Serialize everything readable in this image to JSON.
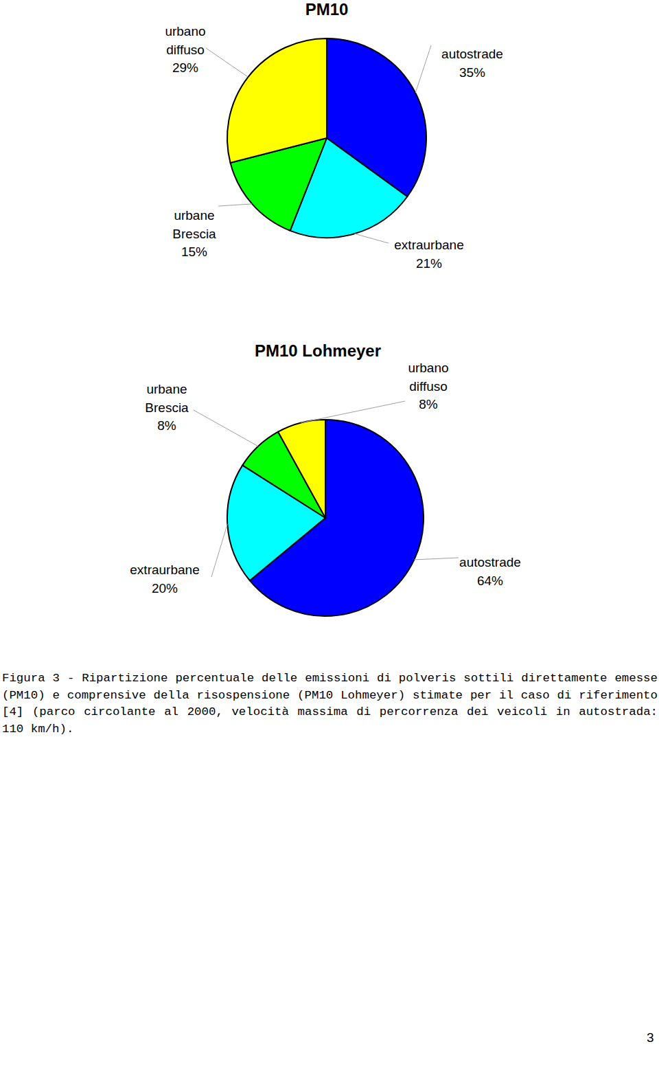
{
  "chart_data": [
    {
      "type": "pie",
      "title": "PM10",
      "categories": [
        "autostrade",
        "extraurbane",
        "urbane Brescia",
        "urbano diffuso"
      ],
      "values": [
        35,
        21,
        15,
        29
      ],
      "value_labels": [
        "35%",
        "21%",
        "15%",
        "29%"
      ],
      "colors": [
        "#0000ff",
        "#00ffff",
        "#00ff00",
        "#ffff00"
      ],
      "data_labels": true
    },
    {
      "type": "pie",
      "title": "PM10 Lohmeyer",
      "categories": [
        "autostrade",
        "extraurbane",
        "urbane Brescia",
        "urbano diffuso"
      ],
      "values": [
        64,
        20,
        8,
        8
      ],
      "value_labels": [
        "64%",
        "20%",
        "8%",
        "8%"
      ],
      "colors": [
        "#0000ff",
        "#00ffff",
        "#00ff00",
        "#ffff00"
      ],
      "data_labels": true
    }
  ],
  "caption": "Figura 3 - Ripartizione percentuale delle emissioni di polveris sottili direttamente emesse (PM10) e comprensive della risospensione (PM10 Lohmeyer) stimate per il caso di riferimento [4] (parco circolante al 2000, velocità massima di percorrenza dei veicoli in autostrada: 110 km/h).",
  "page_number": "3"
}
